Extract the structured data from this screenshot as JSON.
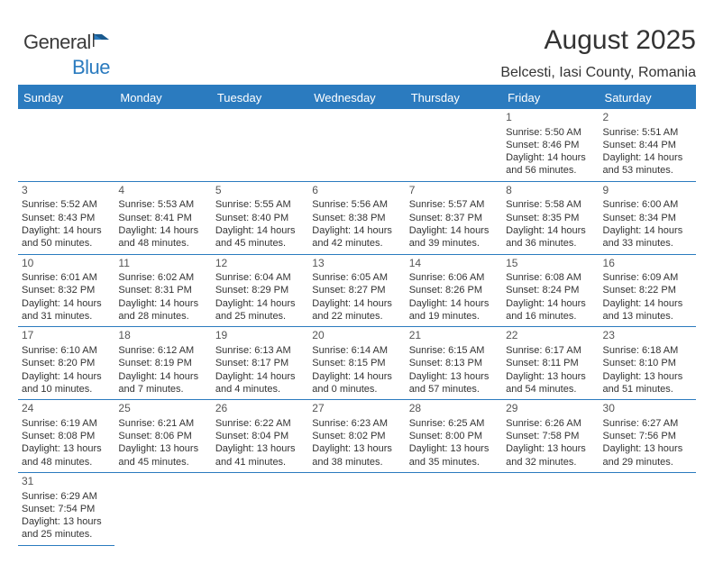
{
  "logo": {
    "text1": "General",
    "text2": "Blue"
  },
  "title": "August 2025",
  "location": "Belcesti, Iasi County, Romania",
  "colors": {
    "brand": "#2b7bbf",
    "text": "#333333",
    "bg": "#ffffff"
  },
  "daysOfWeek": [
    "Sunday",
    "Monday",
    "Tuesday",
    "Wednesday",
    "Thursday",
    "Friday",
    "Saturday"
  ],
  "weeks": [
    [
      null,
      null,
      null,
      null,
      null,
      {
        "n": "1",
        "sr": "Sunrise: 5:50 AM",
        "ss": "Sunset: 8:46 PM",
        "d1": "Daylight: 14 hours",
        "d2": "and 56 minutes."
      },
      {
        "n": "2",
        "sr": "Sunrise: 5:51 AM",
        "ss": "Sunset: 8:44 PM",
        "d1": "Daylight: 14 hours",
        "d2": "and 53 minutes."
      }
    ],
    [
      {
        "n": "3",
        "sr": "Sunrise: 5:52 AM",
        "ss": "Sunset: 8:43 PM",
        "d1": "Daylight: 14 hours",
        "d2": "and 50 minutes."
      },
      {
        "n": "4",
        "sr": "Sunrise: 5:53 AM",
        "ss": "Sunset: 8:41 PM",
        "d1": "Daylight: 14 hours",
        "d2": "and 48 minutes."
      },
      {
        "n": "5",
        "sr": "Sunrise: 5:55 AM",
        "ss": "Sunset: 8:40 PM",
        "d1": "Daylight: 14 hours",
        "d2": "and 45 minutes."
      },
      {
        "n": "6",
        "sr": "Sunrise: 5:56 AM",
        "ss": "Sunset: 8:38 PM",
        "d1": "Daylight: 14 hours",
        "d2": "and 42 minutes."
      },
      {
        "n": "7",
        "sr": "Sunrise: 5:57 AM",
        "ss": "Sunset: 8:37 PM",
        "d1": "Daylight: 14 hours",
        "d2": "and 39 minutes."
      },
      {
        "n": "8",
        "sr": "Sunrise: 5:58 AM",
        "ss": "Sunset: 8:35 PM",
        "d1": "Daylight: 14 hours",
        "d2": "and 36 minutes."
      },
      {
        "n": "9",
        "sr": "Sunrise: 6:00 AM",
        "ss": "Sunset: 8:34 PM",
        "d1": "Daylight: 14 hours",
        "d2": "and 33 minutes."
      }
    ],
    [
      {
        "n": "10",
        "sr": "Sunrise: 6:01 AM",
        "ss": "Sunset: 8:32 PM",
        "d1": "Daylight: 14 hours",
        "d2": "and 31 minutes."
      },
      {
        "n": "11",
        "sr": "Sunrise: 6:02 AM",
        "ss": "Sunset: 8:31 PM",
        "d1": "Daylight: 14 hours",
        "d2": "and 28 minutes."
      },
      {
        "n": "12",
        "sr": "Sunrise: 6:04 AM",
        "ss": "Sunset: 8:29 PM",
        "d1": "Daylight: 14 hours",
        "d2": "and 25 minutes."
      },
      {
        "n": "13",
        "sr": "Sunrise: 6:05 AM",
        "ss": "Sunset: 8:27 PM",
        "d1": "Daylight: 14 hours",
        "d2": "and 22 minutes."
      },
      {
        "n": "14",
        "sr": "Sunrise: 6:06 AM",
        "ss": "Sunset: 8:26 PM",
        "d1": "Daylight: 14 hours",
        "d2": "and 19 minutes."
      },
      {
        "n": "15",
        "sr": "Sunrise: 6:08 AM",
        "ss": "Sunset: 8:24 PM",
        "d1": "Daylight: 14 hours",
        "d2": "and 16 minutes."
      },
      {
        "n": "16",
        "sr": "Sunrise: 6:09 AM",
        "ss": "Sunset: 8:22 PM",
        "d1": "Daylight: 14 hours",
        "d2": "and 13 minutes."
      }
    ],
    [
      {
        "n": "17",
        "sr": "Sunrise: 6:10 AM",
        "ss": "Sunset: 8:20 PM",
        "d1": "Daylight: 14 hours",
        "d2": "and 10 minutes."
      },
      {
        "n": "18",
        "sr": "Sunrise: 6:12 AM",
        "ss": "Sunset: 8:19 PM",
        "d1": "Daylight: 14 hours",
        "d2": "and 7 minutes."
      },
      {
        "n": "19",
        "sr": "Sunrise: 6:13 AM",
        "ss": "Sunset: 8:17 PM",
        "d1": "Daylight: 14 hours",
        "d2": "and 4 minutes."
      },
      {
        "n": "20",
        "sr": "Sunrise: 6:14 AM",
        "ss": "Sunset: 8:15 PM",
        "d1": "Daylight: 14 hours",
        "d2": "and 0 minutes."
      },
      {
        "n": "21",
        "sr": "Sunrise: 6:15 AM",
        "ss": "Sunset: 8:13 PM",
        "d1": "Daylight: 13 hours",
        "d2": "and 57 minutes."
      },
      {
        "n": "22",
        "sr": "Sunrise: 6:17 AM",
        "ss": "Sunset: 8:11 PM",
        "d1": "Daylight: 13 hours",
        "d2": "and 54 minutes."
      },
      {
        "n": "23",
        "sr": "Sunrise: 6:18 AM",
        "ss": "Sunset: 8:10 PM",
        "d1": "Daylight: 13 hours",
        "d2": "and 51 minutes."
      }
    ],
    [
      {
        "n": "24",
        "sr": "Sunrise: 6:19 AM",
        "ss": "Sunset: 8:08 PM",
        "d1": "Daylight: 13 hours",
        "d2": "and 48 minutes."
      },
      {
        "n": "25",
        "sr": "Sunrise: 6:21 AM",
        "ss": "Sunset: 8:06 PM",
        "d1": "Daylight: 13 hours",
        "d2": "and 45 minutes."
      },
      {
        "n": "26",
        "sr": "Sunrise: 6:22 AM",
        "ss": "Sunset: 8:04 PM",
        "d1": "Daylight: 13 hours",
        "d2": "and 41 minutes."
      },
      {
        "n": "27",
        "sr": "Sunrise: 6:23 AM",
        "ss": "Sunset: 8:02 PM",
        "d1": "Daylight: 13 hours",
        "d2": "and 38 minutes."
      },
      {
        "n": "28",
        "sr": "Sunrise: 6:25 AM",
        "ss": "Sunset: 8:00 PM",
        "d1": "Daylight: 13 hours",
        "d2": "and 35 minutes."
      },
      {
        "n": "29",
        "sr": "Sunrise: 6:26 AM",
        "ss": "Sunset: 7:58 PM",
        "d1": "Daylight: 13 hours",
        "d2": "and 32 minutes."
      },
      {
        "n": "30",
        "sr": "Sunrise: 6:27 AM",
        "ss": "Sunset: 7:56 PM",
        "d1": "Daylight: 13 hours",
        "d2": "and 29 minutes."
      }
    ],
    [
      {
        "n": "31",
        "sr": "Sunrise: 6:29 AM",
        "ss": "Sunset: 7:54 PM",
        "d1": "Daylight: 13 hours",
        "d2": "and 25 minutes."
      },
      null,
      null,
      null,
      null,
      null,
      null
    ]
  ]
}
